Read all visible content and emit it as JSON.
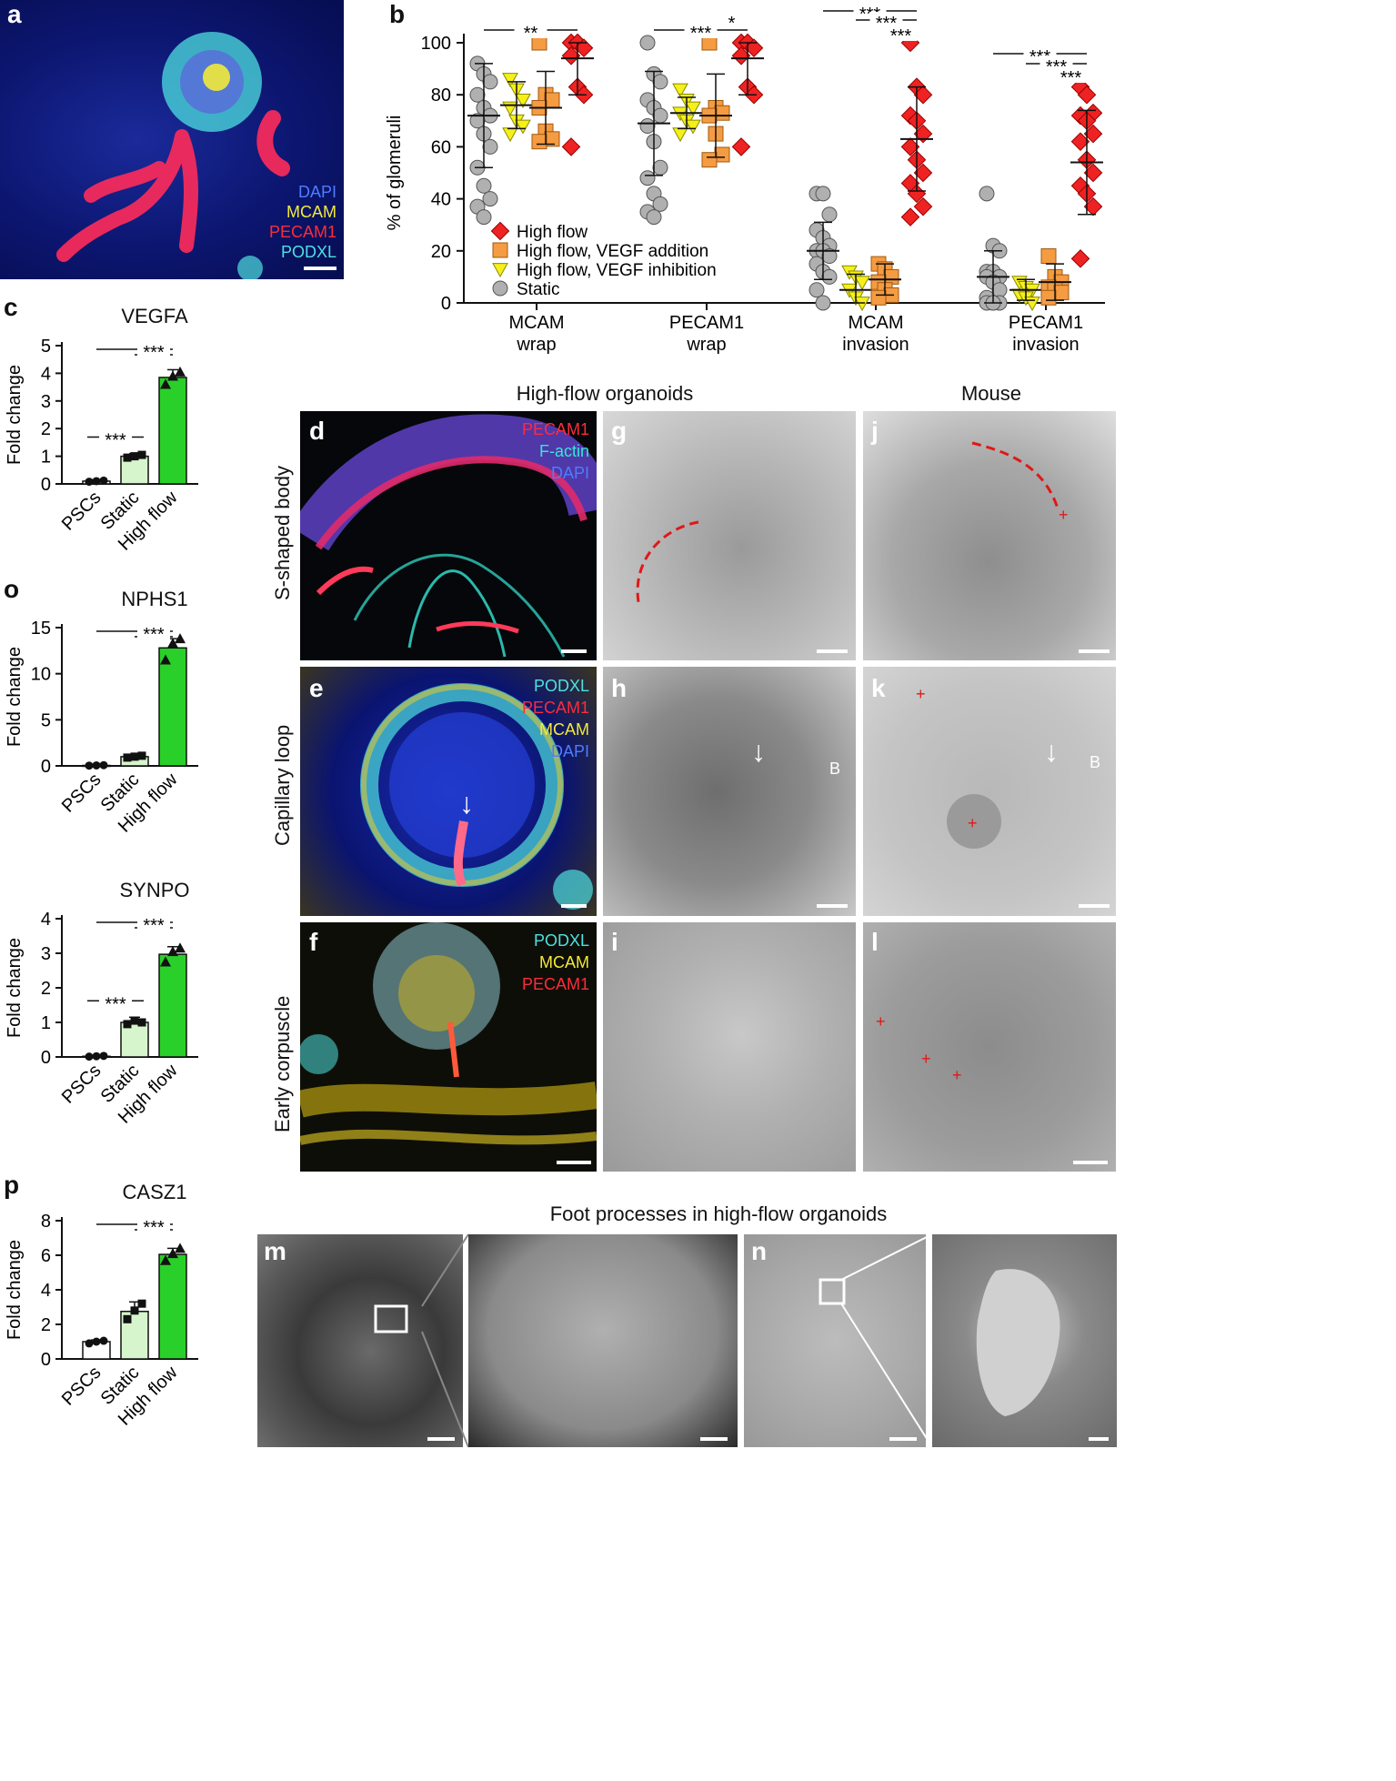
{
  "panel_letters": {
    "a": "a",
    "b": "b",
    "c": "c",
    "o": "o",
    "p": "p",
    "d": "d",
    "e": "e",
    "f": "f",
    "g": "g",
    "h": "h",
    "i": "i",
    "j": "j",
    "k": "k",
    "l": "l",
    "m": "m",
    "n": "n"
  },
  "panel_a": {
    "stains": [
      "DAPI",
      "MCAM",
      "PECAM1",
      "PODXL"
    ]
  },
  "panel_d": {
    "stains": [
      "PECAM1",
      "F-actin",
      "DAPI"
    ]
  },
  "panel_e": {
    "stains": [
      "PODXL",
      "PECAM1",
      "MCAM",
      "DAPI"
    ]
  },
  "panel_f": {
    "stains": [
      "PODXL",
      "MCAM",
      "PECAM1"
    ]
  },
  "colors": {
    "dapi": "#3a6cff",
    "mcam": "#f2e93a",
    "pecam1": "#ff2b3a",
    "podxl": "#4ee0e0",
    "factin": "#35e6d6",
    "green": "#2ad02a",
    "lightgreen": "#d6f5cc",
    "orange": "#f59b42",
    "yellow": "#f5f01a",
    "red": "#ee2222",
    "gray": "#b0b0b0"
  },
  "header": {
    "organoids": "High-flow organoids",
    "mouse": "Mouse"
  },
  "row_labels": [
    "S-shaped body",
    "Capillary loop",
    "Early corpuscle"
  ],
  "fp_title": "Foot processes in high-flow organoids",
  "em_marks": {
    "b": "B",
    "plus": "+"
  },
  "chart_data": [
    {
      "id": "b",
      "type": "scatter",
      "ylabel": "% of glomeruli",
      "ylim": [
        0,
        100
      ],
      "yticks": [
        0,
        20,
        40,
        60,
        80,
        100
      ],
      "categories": [
        "MCAM wrap",
        "PECAM1 wrap",
        "MCAM invasion",
        "PECAM1 invasion"
      ],
      "category_lines": [
        [
          "MCAM",
          "wrap"
        ],
        [
          "PECAM1",
          "wrap"
        ],
        [
          "MCAM",
          "invasion"
        ],
        [
          "PECAM1",
          "invasion"
        ]
      ],
      "series": [
        {
          "name": "Static",
          "marker": "circle",
          "color": "#b0b0b0",
          "points": [
            [
              92,
              88,
              85,
              80,
              75,
              72,
              70,
              65,
              60,
              52,
              45,
              40,
              37,
              33
            ],
            [
              100,
              88,
              85,
              78,
              75,
              72,
              68,
              62,
              52,
              48,
              42,
              38,
              35,
              33
            ],
            [
              42,
              42,
              34,
              28,
              25,
              22,
              20,
              20,
              18,
              15,
              12,
              10,
              5,
              0
            ],
            [
              42,
              22,
              20,
              12,
              12,
              10,
              10,
              8,
              5,
              2,
              0,
              0,
              0,
              0
            ]
          ],
          "mean": [
            72,
            69,
            20,
            10
          ],
          "sd": [
            20,
            20,
            11,
            10
          ]
        },
        {
          "name": "High flow, VEGF inhibition",
          "marker": "triangle",
          "color": "#f5f01a",
          "points": [
            [
              86,
              82,
              78,
              75,
              70,
              68,
              65
            ],
            [
              82,
              78,
              75,
              73,
              70,
              68,
              65
            ],
            [
              12,
              10,
              8,
              5,
              2,
              0
            ],
            [
              8,
              6,
              5,
              3,
              2,
              0
            ]
          ],
          "mean": [
            76,
            73,
            5,
            5
          ],
          "sd": [
            9,
            6,
            6,
            4
          ]
        },
        {
          "name": "High flow, VEGF addition",
          "marker": "square",
          "color": "#f59b42",
          "points": [
            [
              100,
              80,
              78,
              75,
              66,
              63,
              62
            ],
            [
              100,
              75,
              73,
              72,
              65,
              57,
              55
            ],
            [
              15,
              13,
              10,
              8,
              5,
              3,
              2
            ],
            [
              18,
              10,
              8,
              6,
              5,
              4,
              2
            ]
          ],
          "mean": [
            75,
            72,
            9,
            8
          ],
          "sd": [
            14,
            16,
            6,
            7
          ]
        },
        {
          "name": "High flow",
          "marker": "diamond",
          "color": "#ee2222",
          "points": [
            [
              100,
              100,
              98,
              95,
              83,
              80,
              60
            ],
            [
              100,
              100,
              98,
              95,
              83,
              80,
              60
            ],
            [
              100,
              83,
              80,
              72,
              70,
              65,
              60,
              55,
              50,
              46,
              42,
              37,
              33
            ],
            [
              83,
              80,
              73,
              72,
              70,
              65,
              62,
              55,
              50,
              45,
              42,
              37,
              17
            ]
          ],
          "mean": [
            94,
            94,
            63,
            54
          ],
          "sd": [
            14,
            14,
            20,
            20
          ]
        }
      ],
      "significance": [
        "**",
        "*",
        "***",
        "***",
        "***",
        "***",
        "***",
        "***",
        "***",
        "***"
      ],
      "legend": "inside-bottom-left"
    },
    {
      "id": "c",
      "type": "bar",
      "title": "VEGFA",
      "ylabel": "Fold change",
      "categories": [
        "PSCs",
        "Static",
        "High flow"
      ],
      "values": [
        0.1,
        1.0,
        3.85
      ],
      "errors": [
        0.05,
        0.1,
        0.28
      ],
      "points": [
        [
          0.08,
          0.1,
          0.12
        ],
        [
          0.95,
          1.0,
          1.05
        ],
        [
          3.6,
          3.9,
          4.05
        ]
      ],
      "ylim": [
        0,
        5
      ],
      "yticks": [
        0,
        1,
        2,
        3,
        4,
        5
      ],
      "significance": [
        "***",
        "***"
      ]
    },
    {
      "id": "o",
      "type": "bar",
      "title": "NPHS1",
      "ylabel": "Fold change",
      "categories": [
        "PSCs",
        "Static",
        "High flow"
      ],
      "values": [
        0.05,
        1.0,
        12.8
      ],
      "errors": [
        0.05,
        0.15,
        1.0
      ],
      "points": [
        [
          0.03,
          0.05,
          0.08
        ],
        [
          0.9,
          1.0,
          1.1
        ],
        [
          11.5,
          13.3,
          13.8
        ]
      ],
      "ylim": [
        0,
        15
      ],
      "yticks": [
        0,
        5,
        10,
        15
      ],
      "significance": [
        "***"
      ]
    },
    {
      "id": "o2",
      "type": "bar",
      "title": "SYNPO",
      "ylabel": "Fold change",
      "categories": [
        "PSCs",
        "Static",
        "High flow"
      ],
      "values": [
        0.02,
        1.0,
        2.97
      ],
      "errors": [
        0.02,
        0.15,
        0.22
      ],
      "points": [
        [
          0.01,
          0.02,
          0.03
        ],
        [
          0.95,
          1.05,
          1.0
        ],
        [
          2.75,
          3.05,
          3.15
        ]
      ],
      "ylim": [
        0,
        4
      ],
      "yticks": [
        0,
        1,
        2,
        3,
        4
      ],
      "significance": [
        "***",
        "***"
      ]
    },
    {
      "id": "p",
      "type": "bar",
      "title": "CASZ1",
      "ylabel": "Fold change",
      "categories": [
        "PSCs",
        "Static",
        "High flow"
      ],
      "values": [
        1.0,
        2.75,
        6.05
      ],
      "errors": [
        0.1,
        0.55,
        0.35
      ],
      "points": [
        [
          0.9,
          1.0,
          1.05
        ],
        [
          2.3,
          2.8,
          3.2
        ],
        [
          5.7,
          6.1,
          6.4
        ]
      ],
      "ylim": [
        0,
        8
      ],
      "yticks": [
        0,
        2,
        4,
        6,
        8
      ],
      "significance": [
        "***"
      ]
    }
  ]
}
